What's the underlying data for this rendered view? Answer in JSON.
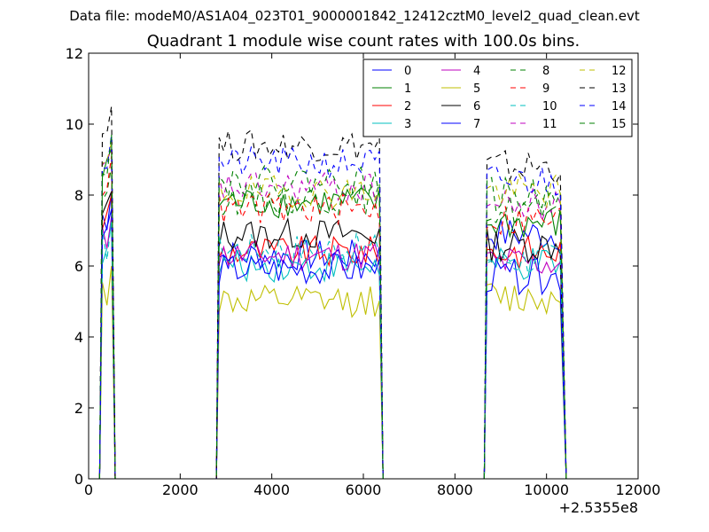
{
  "figure": {
    "suptitle": "Data file: modeM0/AS1A04_023T01_9000001842_12412cztM0_level2_quad_clean.evt",
    "offset_label": "+2.5355e8"
  },
  "chart_data": {
    "type": "line",
    "title": "Quadrant 1 module wise count rates with 100.0s bins.",
    "xlabel": "",
    "ylabel": "",
    "xlim": [
      0,
      12000
    ],
    "ylim": [
      0,
      12
    ],
    "x_offset": 253550000,
    "xticks": [
      0,
      2000,
      4000,
      6000,
      8000,
      10000,
      12000
    ],
    "yticks": [
      0,
      2,
      4,
      6,
      8,
      10,
      12
    ],
    "grid": false,
    "legend_position": "top-right",
    "legend_columns": 4,
    "segments": [
      {
        "x_start": 300,
        "x_end": 500
      },
      {
        "x_start": 2850,
        "x_end": 6350
      },
      {
        "x_start": 8700,
        "x_end": 10350
      }
    ],
    "series": [
      {
        "name": "0",
        "color": "#0000ff",
        "dashed": false,
        "levels": [
          7.4,
          6.3,
          6.9
        ]
      },
      {
        "name": "1",
        "color": "#008000",
        "dashed": false,
        "levels": [
          8.6,
          7.8,
          7.2
        ]
      },
      {
        "name": "2",
        "color": "#ff0000",
        "dashed": false,
        "levels": [
          7.3,
          6.4,
          6.4
        ]
      },
      {
        "name": "3",
        "color": "#00bfbf",
        "dashed": false,
        "levels": [
          6.5,
          6.0,
          6.0
        ]
      },
      {
        "name": "4",
        "color": "#bf00bf",
        "dashed": false,
        "levels": [
          6.7,
          6.3,
          6.1
        ]
      },
      {
        "name": "5",
        "color": "#bfbf00",
        "dashed": false,
        "levels": [
          5.3,
          5.0,
          5.1
        ]
      },
      {
        "name": "6",
        "color": "#000000",
        "dashed": false,
        "levels": [
          7.4,
          6.9,
          6.6
        ]
      },
      {
        "name": "7",
        "color": "#0000ff",
        "dashed": false,
        "levels": [
          6.9,
          5.9,
          5.7
        ]
      },
      {
        "name": "8",
        "color": "#008000",
        "dashed": true,
        "levels": [
          8.1,
          7.9,
          7.6
        ]
      },
      {
        "name": "9",
        "color": "#ff0000",
        "dashed": true,
        "levels": [
          8.4,
          7.6,
          7.3
        ]
      },
      {
        "name": "10",
        "color": "#00bfbf",
        "dashed": true,
        "levels": [
          6.6,
          6.5,
          6.2
        ]
      },
      {
        "name": "11",
        "color": "#bf00bf",
        "dashed": true,
        "levels": [
          8.6,
          8.2,
          7.7
        ]
      },
      {
        "name": "12",
        "color": "#bfbf00",
        "dashed": true,
        "levels": [
          8.8,
          8.1,
          8.1
        ]
      },
      {
        "name": "13",
        "color": "#000000",
        "dashed": true,
        "levels": [
          9.8,
          9.4,
          8.8
        ]
      },
      {
        "name": "14",
        "color": "#0000ff",
        "dashed": true,
        "levels": [
          9.0,
          8.9,
          8.4
        ]
      },
      {
        "name": "15",
        "color": "#008000",
        "dashed": true,
        "levels": [
          9.0,
          8.4,
          8.0
        ]
      }
    ]
  }
}
